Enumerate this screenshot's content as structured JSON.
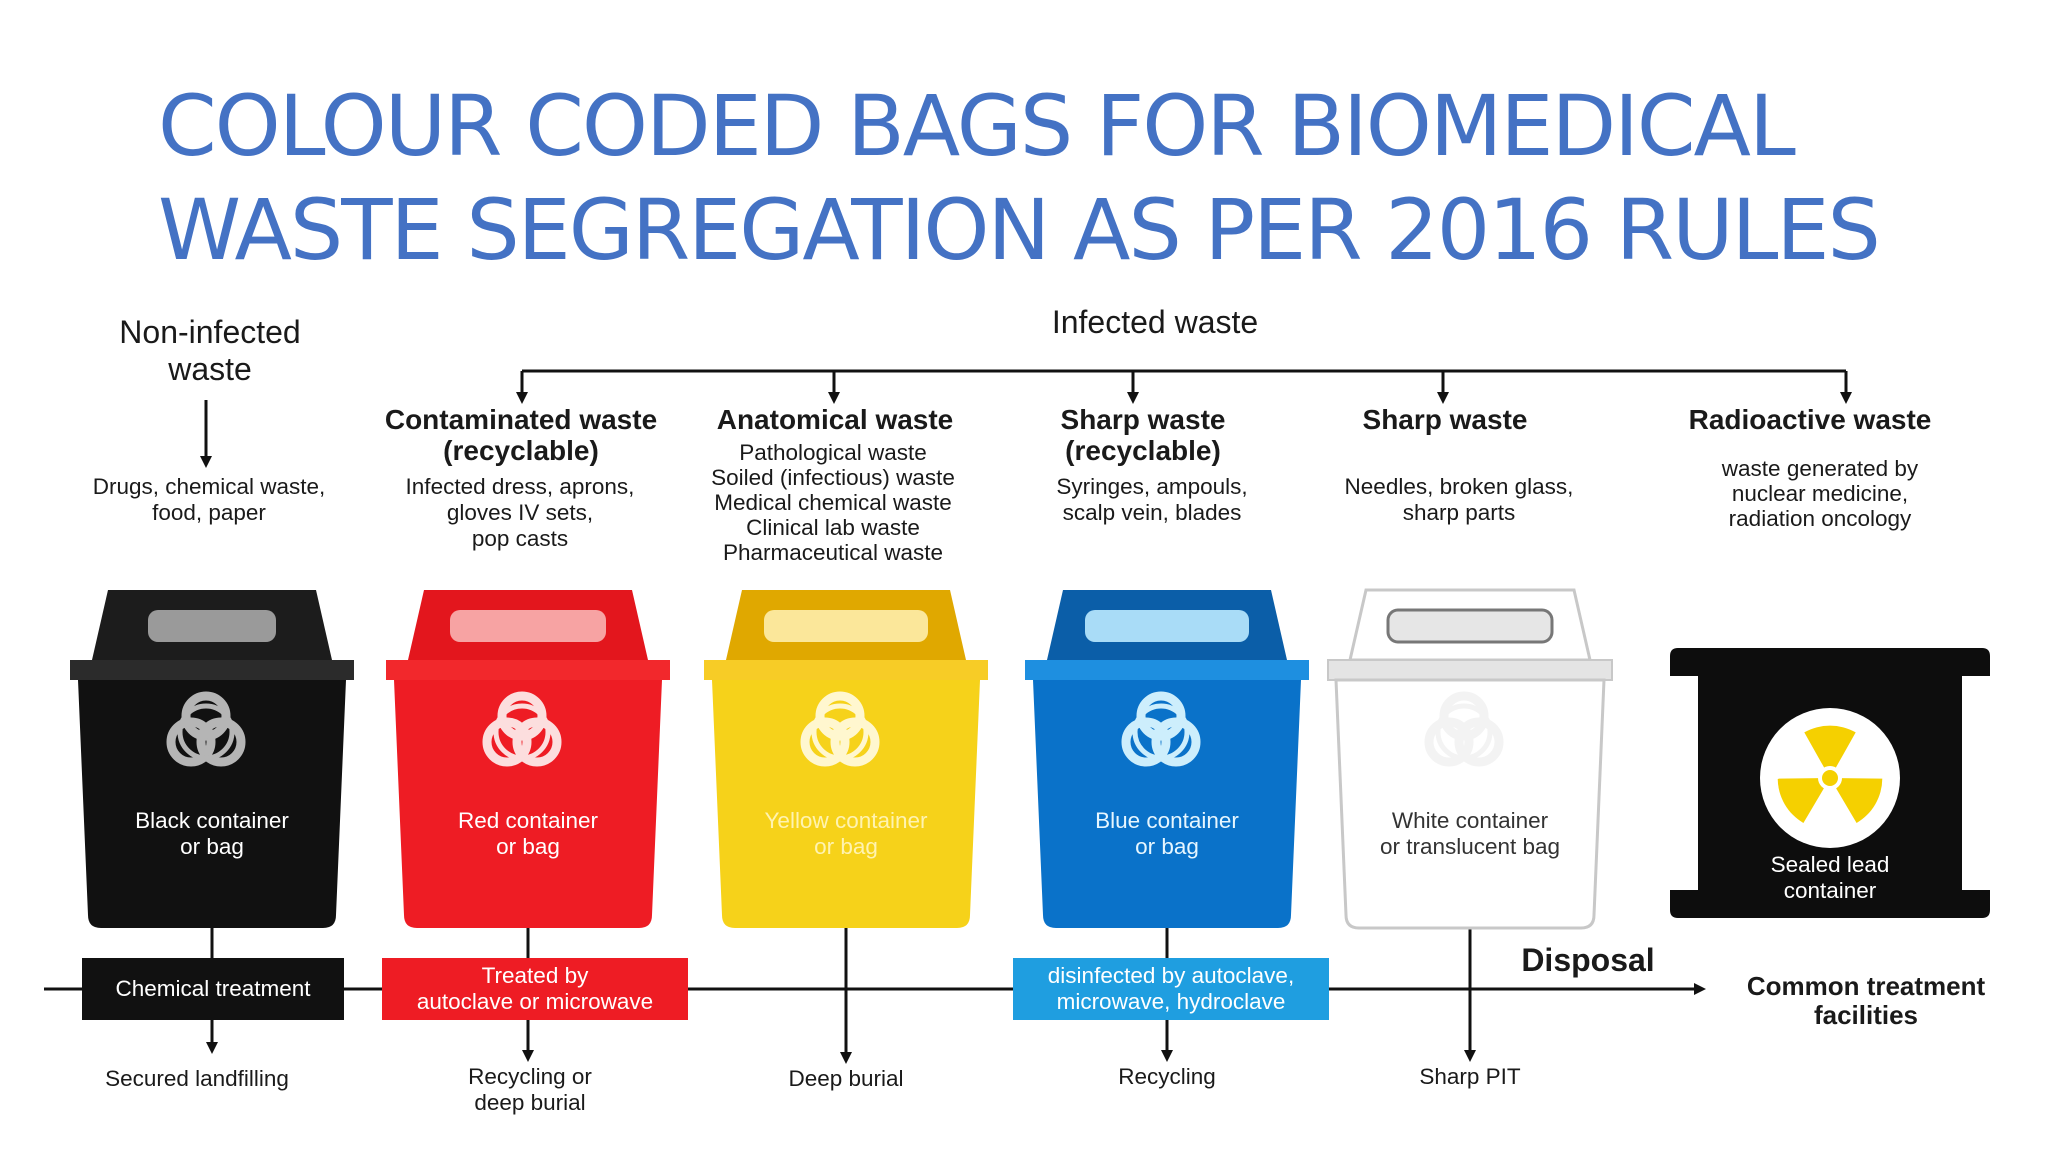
{
  "title": {
    "line1": "COLOUR CODED BAGS FOR BIOMEDICAL",
    "line2": "WASTE SEGREGATION AS PER 2016 RULES"
  },
  "non_infected": {
    "heading_line1": "Non-infected",
    "heading_line2": "waste",
    "desc_line1": "Drugs, chemical waste,",
    "desc_line2": "food, paper"
  },
  "infected_heading": "Infected waste",
  "categories": [
    {
      "title_line1": "Contaminated waste",
      "title_line2": "(recyclable)",
      "desc": [
        "Infected dress, aprons,",
        "gloves IV sets,",
        "pop casts"
      ]
    },
    {
      "title_line1": "Anatomical waste",
      "desc": [
        "Pathological waste",
        "Soiled (infectious) waste",
        "Medical chemical waste",
        "Clinical lab waste",
        "Pharmaceutical waste"
      ]
    },
    {
      "title_line1": "Sharp waste",
      "title_line2": "(recyclable)",
      "desc": [
        "Syringes, ampouls,",
        "scalp vein, blades"
      ]
    },
    {
      "title_line1": "Sharp waste",
      "desc": [
        "Needles, broken glass,",
        "sharp parts"
      ]
    },
    {
      "title_line1": "Radioactive waste",
      "desc": [
        "waste generated by",
        "nuclear medicine,",
        "radiation oncology"
      ]
    }
  ],
  "bins": [
    {
      "label_line1": "Black container",
      "label_line2": "or bag",
      "color": "#111111",
      "lid": "#1c1c1c",
      "rim": "#2b2b2b",
      "handle": "#9a9a9a",
      "symbol": "#b5b5b5",
      "text": "#ffffff"
    },
    {
      "label_line1": "Red container",
      "label_line2": "or bag",
      "color": "#ee1c24",
      "lid": "#e3161d",
      "rim": "#f2282c",
      "handle": "#f7a3a3",
      "symbol": "#fcdede",
      "text": "#ffffff"
    },
    {
      "label_line1": "Yellow container",
      "label_line2": "or bag",
      "color": "#f6d21a",
      "lid": "#e0a800",
      "rim": "#f7cc26",
      "handle": "#fbe79a",
      "symbol": "#fff7cf",
      "text": "#fff3b0"
    },
    {
      "label_line1": "Blue container",
      "label_line2": "or bag",
      "color": "#0a72c9",
      "lid": "#0b5ea8",
      "rim": "#1e8fe0",
      "handle": "#a9dcf7",
      "symbol": "#cdeefc",
      "text": "#e6f6ff"
    },
    {
      "label_line1": "White container",
      "label_line2": "or translucent bag",
      "color": "#ffffff",
      "lid": "#ffffff",
      "rim": "#e4e4e4",
      "handle": "#e6e6e6",
      "symbol": "#f3f3f3",
      "text": "#333333"
    }
  ],
  "lead_container": {
    "label_line1": "Sealed lead",
    "label_line2": "container",
    "color": "#0d0d0d",
    "trefoil": "#f5d000"
  },
  "treatments": {
    "chemical": "Chemical treatment",
    "red_line1": "Treated by",
    "red_line2": "autoclave or microwave",
    "blue_line1": "disinfected by autoclave,",
    "blue_line2": "microwave, hydroclave"
  },
  "disposal_label": "Disposal",
  "common_treatment_line1": "Common treatment",
  "common_treatment_line2": "facilities",
  "bottom": {
    "black": "Secured landfilling",
    "red_line1": "Recycling or",
    "red_line2": "deep burial",
    "yellow": "Deep burial",
    "blue": "Recycling",
    "white": "Sharp PIT"
  },
  "colors": {
    "title": "#4472c4",
    "red_box": "#ee1c24",
    "blue_box": "#1f9ee0",
    "black_box": "#111111"
  }
}
